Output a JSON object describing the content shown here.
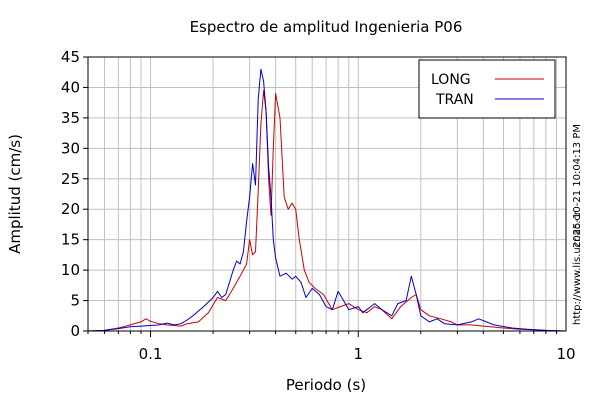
{
  "chart_data": {
    "type": "line",
    "title": "Espectro de amplitud Ingenieria P06",
    "xlabel": "Periodo (s)",
    "ylabel": "Amplitud (cm/s)",
    "x_scale": "log",
    "xlim": [
      0.05,
      10
    ],
    "ylim": [
      0,
      45
    ],
    "x_ticks": [
      0.1,
      1,
      10
    ],
    "x_tick_labels": [
      "0.1",
      "1",
      "10"
    ],
    "y_ticks": [
      0,
      5,
      10,
      15,
      20,
      25,
      30,
      35,
      40,
      45
    ],
    "y_tick_labels": [
      "0",
      "5",
      "10",
      "15",
      "20",
      "25",
      "30",
      "35",
      "40",
      "45"
    ],
    "grid": true,
    "legend_position": "top-right",
    "timestamp_text": "2025-10-21 10:04:13 PM",
    "url_text": "http://www.lis.ucr.ac.cr",
    "series": [
      {
        "name": "LONG",
        "color": "#cc0000",
        "points": [
          [
            0.05,
            0.0
          ],
          [
            0.06,
            0.1
          ],
          [
            0.07,
            0.5
          ],
          [
            0.08,
            1.0
          ],
          [
            0.09,
            1.5
          ],
          [
            0.095,
            2.0
          ],
          [
            0.1,
            1.6
          ],
          [
            0.11,
            1.2
          ],
          [
            0.12,
            1.0
          ],
          [
            0.13,
            0.9
          ],
          [
            0.14,
            0.8
          ],
          [
            0.15,
            1.2
          ],
          [
            0.17,
            1.5
          ],
          [
            0.19,
            3.0
          ],
          [
            0.21,
            5.5
          ],
          [
            0.23,
            5.0
          ],
          [
            0.25,
            7.0
          ],
          [
            0.27,
            9.0
          ],
          [
            0.29,
            11.0
          ],
          [
            0.3,
            15.0
          ],
          [
            0.31,
            12.5
          ],
          [
            0.32,
            13.0
          ],
          [
            0.33,
            23.0
          ],
          [
            0.34,
            34.0
          ],
          [
            0.35,
            39.5
          ],
          [
            0.36,
            36.0
          ],
          [
            0.37,
            25.0
          ],
          [
            0.38,
            19.0
          ],
          [
            0.39,
            30.0
          ],
          [
            0.4,
            39.0
          ],
          [
            0.42,
            35.0
          ],
          [
            0.44,
            22.0
          ],
          [
            0.46,
            20.0
          ],
          [
            0.48,
            21.0
          ],
          [
            0.5,
            20.0
          ],
          [
            0.52,
            15.0
          ],
          [
            0.55,
            10.0
          ],
          [
            0.58,
            8.0
          ],
          [
            0.62,
            7.0
          ],
          [
            0.68,
            6.0
          ],
          [
            0.75,
            3.5
          ],
          [
            0.82,
            4.0
          ],
          [
            0.9,
            4.5
          ],
          [
            1.0,
            3.5
          ],
          [
            1.1,
            3.0
          ],
          [
            1.2,
            4.0
          ],
          [
            1.3,
            3.5
          ],
          [
            1.45,
            2.0
          ],
          [
            1.6,
            4.0
          ],
          [
            1.8,
            5.5
          ],
          [
            1.9,
            6.0
          ],
          [
            2.0,
            3.5
          ],
          [
            2.2,
            2.5
          ],
          [
            2.5,
            2.0
          ],
          [
            2.8,
            1.5
          ],
          [
            3.0,
            1.0
          ],
          [
            3.5,
            1.0
          ],
          [
            4.0,
            0.8
          ],
          [
            5.0,
            0.5
          ],
          [
            6.0,
            0.3
          ],
          [
            7.0,
            0.2
          ],
          [
            8.0,
            0.1
          ],
          [
            10.0,
            0.0
          ]
        ]
      },
      {
        "name": "TRAN",
        "color": "#0000cc",
        "points": [
          [
            0.05,
            0.0
          ],
          [
            0.06,
            0.1
          ],
          [
            0.07,
            0.4
          ],
          [
            0.08,
            0.7
          ],
          [
            0.09,
            0.8
          ],
          [
            0.1,
            0.9
          ],
          [
            0.11,
            1.0
          ],
          [
            0.12,
            1.3
          ],
          [
            0.13,
            1.0
          ],
          [
            0.14,
            1.2
          ],
          [
            0.15,
            1.8
          ],
          [
            0.16,
            2.5
          ],
          [
            0.18,
            4.0
          ],
          [
            0.2,
            5.5
          ],
          [
            0.21,
            6.5
          ],
          [
            0.22,
            5.5
          ],
          [
            0.23,
            6.0
          ],
          [
            0.24,
            8.0
          ],
          [
            0.25,
            10.0
          ],
          [
            0.26,
            11.5
          ],
          [
            0.27,
            11.0
          ],
          [
            0.28,
            13.0
          ],
          [
            0.29,
            18.0
          ],
          [
            0.3,
            22.0
          ],
          [
            0.31,
            27.5
          ],
          [
            0.32,
            24.0
          ],
          [
            0.33,
            38.0
          ],
          [
            0.34,
            43.0
          ],
          [
            0.35,
            41.0
          ],
          [
            0.36,
            36.0
          ],
          [
            0.37,
            27.0
          ],
          [
            0.38,
            22.0
          ],
          [
            0.39,
            15.0
          ],
          [
            0.4,
            12.0
          ],
          [
            0.42,
            9.0
          ],
          [
            0.45,
            9.5
          ],
          [
            0.48,
            8.5
          ],
          [
            0.5,
            9.0
          ],
          [
            0.53,
            8.0
          ],
          [
            0.56,
            5.5
          ],
          [
            0.6,
            7.0
          ],
          [
            0.65,
            6.0
          ],
          [
            0.7,
            4.0
          ],
          [
            0.75,
            3.5
          ],
          [
            0.8,
            6.5
          ],
          [
            0.85,
            5.0
          ],
          [
            0.9,
            3.5
          ],
          [
            1.0,
            4.0
          ],
          [
            1.05,
            3.0
          ],
          [
            1.2,
            4.5
          ],
          [
            1.3,
            3.5
          ],
          [
            1.45,
            2.5
          ],
          [
            1.55,
            4.5
          ],
          [
            1.7,
            5.0
          ],
          [
            1.8,
            9.0
          ],
          [
            1.9,
            6.0
          ],
          [
            2.0,
            2.5
          ],
          [
            2.2,
            1.5
          ],
          [
            2.4,
            2.0
          ],
          [
            2.6,
            1.2
          ],
          [
            3.0,
            1.0
          ],
          [
            3.5,
            1.5
          ],
          [
            3.8,
            2.0
          ],
          [
            4.5,
            1.0
          ],
          [
            5.5,
            0.5
          ],
          [
            6.5,
            0.3
          ],
          [
            8.0,
            0.1
          ],
          [
            10.0,
            0.0
          ]
        ]
      }
    ]
  }
}
